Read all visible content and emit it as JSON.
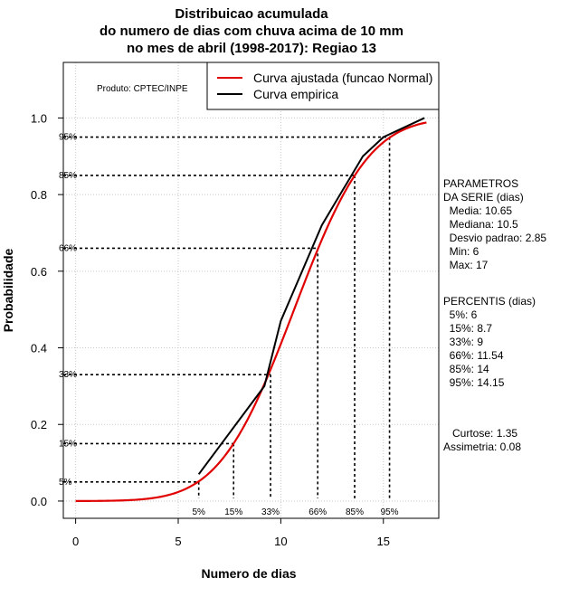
{
  "chart_data": {
    "type": "line",
    "title_lines": [
      "Distribuicao acumulada",
      "do numero de dias com chuva acima de 10 mm",
      "no mes de abril (1998-2017): Regiao 13"
    ],
    "xlabel": "Numero de dias",
    "ylabel": "Probabilidade",
    "xlim": [
      -0.6,
      17.7
    ],
    "ylim": [
      -0.045,
      1.145
    ],
    "x_ticks": [
      0,
      5,
      10,
      15
    ],
    "y_ticks": [
      0.0,
      0.2,
      0.4,
      0.6,
      0.8,
      1.0
    ],
    "y_tick_labels": [
      "0.0",
      "0.2",
      "0.4",
      "0.6",
      "0.8",
      "1.0"
    ],
    "grid": true,
    "product_label": "Produto: CPTEC/INPE",
    "legend": [
      {
        "label": "Curva ajustada (funcao Normal)",
        "color": "#e00000"
      },
      {
        "label": "Curva empirica",
        "color": "#000000"
      }
    ],
    "series": [
      {
        "name": "Curva ajustada (funcao Normal)",
        "color": "#e00000",
        "distribution": "normal",
        "mean": 10.65,
        "sd": 2.85,
        "x_range": [
          0,
          17.1
        ]
      },
      {
        "name": "Curva empirica",
        "color": "#000000",
        "x": [
          6,
          9.2,
          10,
          12,
          14,
          15,
          17
        ],
        "y": [
          0.07,
          0.3,
          0.47,
          0.72,
          0.9,
          0.95,
          1.0
        ]
      }
    ],
    "percentile_markers": [
      {
        "label": "5%",
        "p": 0.05,
        "x": 6
      },
      {
        "label": "15%",
        "p": 0.15,
        "x": 7.7
      },
      {
        "label": "33%",
        "p": 0.33,
        "x": 9.5
      },
      {
        "label": "66%",
        "p": 0.66,
        "x": 11.8
      },
      {
        "label": "85%",
        "p": 0.85,
        "x": 13.6
      },
      {
        "label": "95%",
        "p": 0.95,
        "x": 15.3
      }
    ],
    "side_params_lines": [
      "PARAMETROS",
      "DA SERIE (dias)",
      "  Media: 10.65",
      "  Mediana: 10.5",
      "  Desvio padrao: 2.85",
      "  Min: 6",
      "  Max: 17"
    ],
    "side_percentis_lines": [
      "PERCENTIS (dias)",
      "  5%: 6",
      "  15%: 8.7",
      "  33%: 9",
      "  66%: 11.54",
      "  85%: 14",
      "  95%: 14.15"
    ],
    "side_stats_lines": [
      "   Curtose: 1.35",
      "Assimetria: 0.08"
    ]
  }
}
